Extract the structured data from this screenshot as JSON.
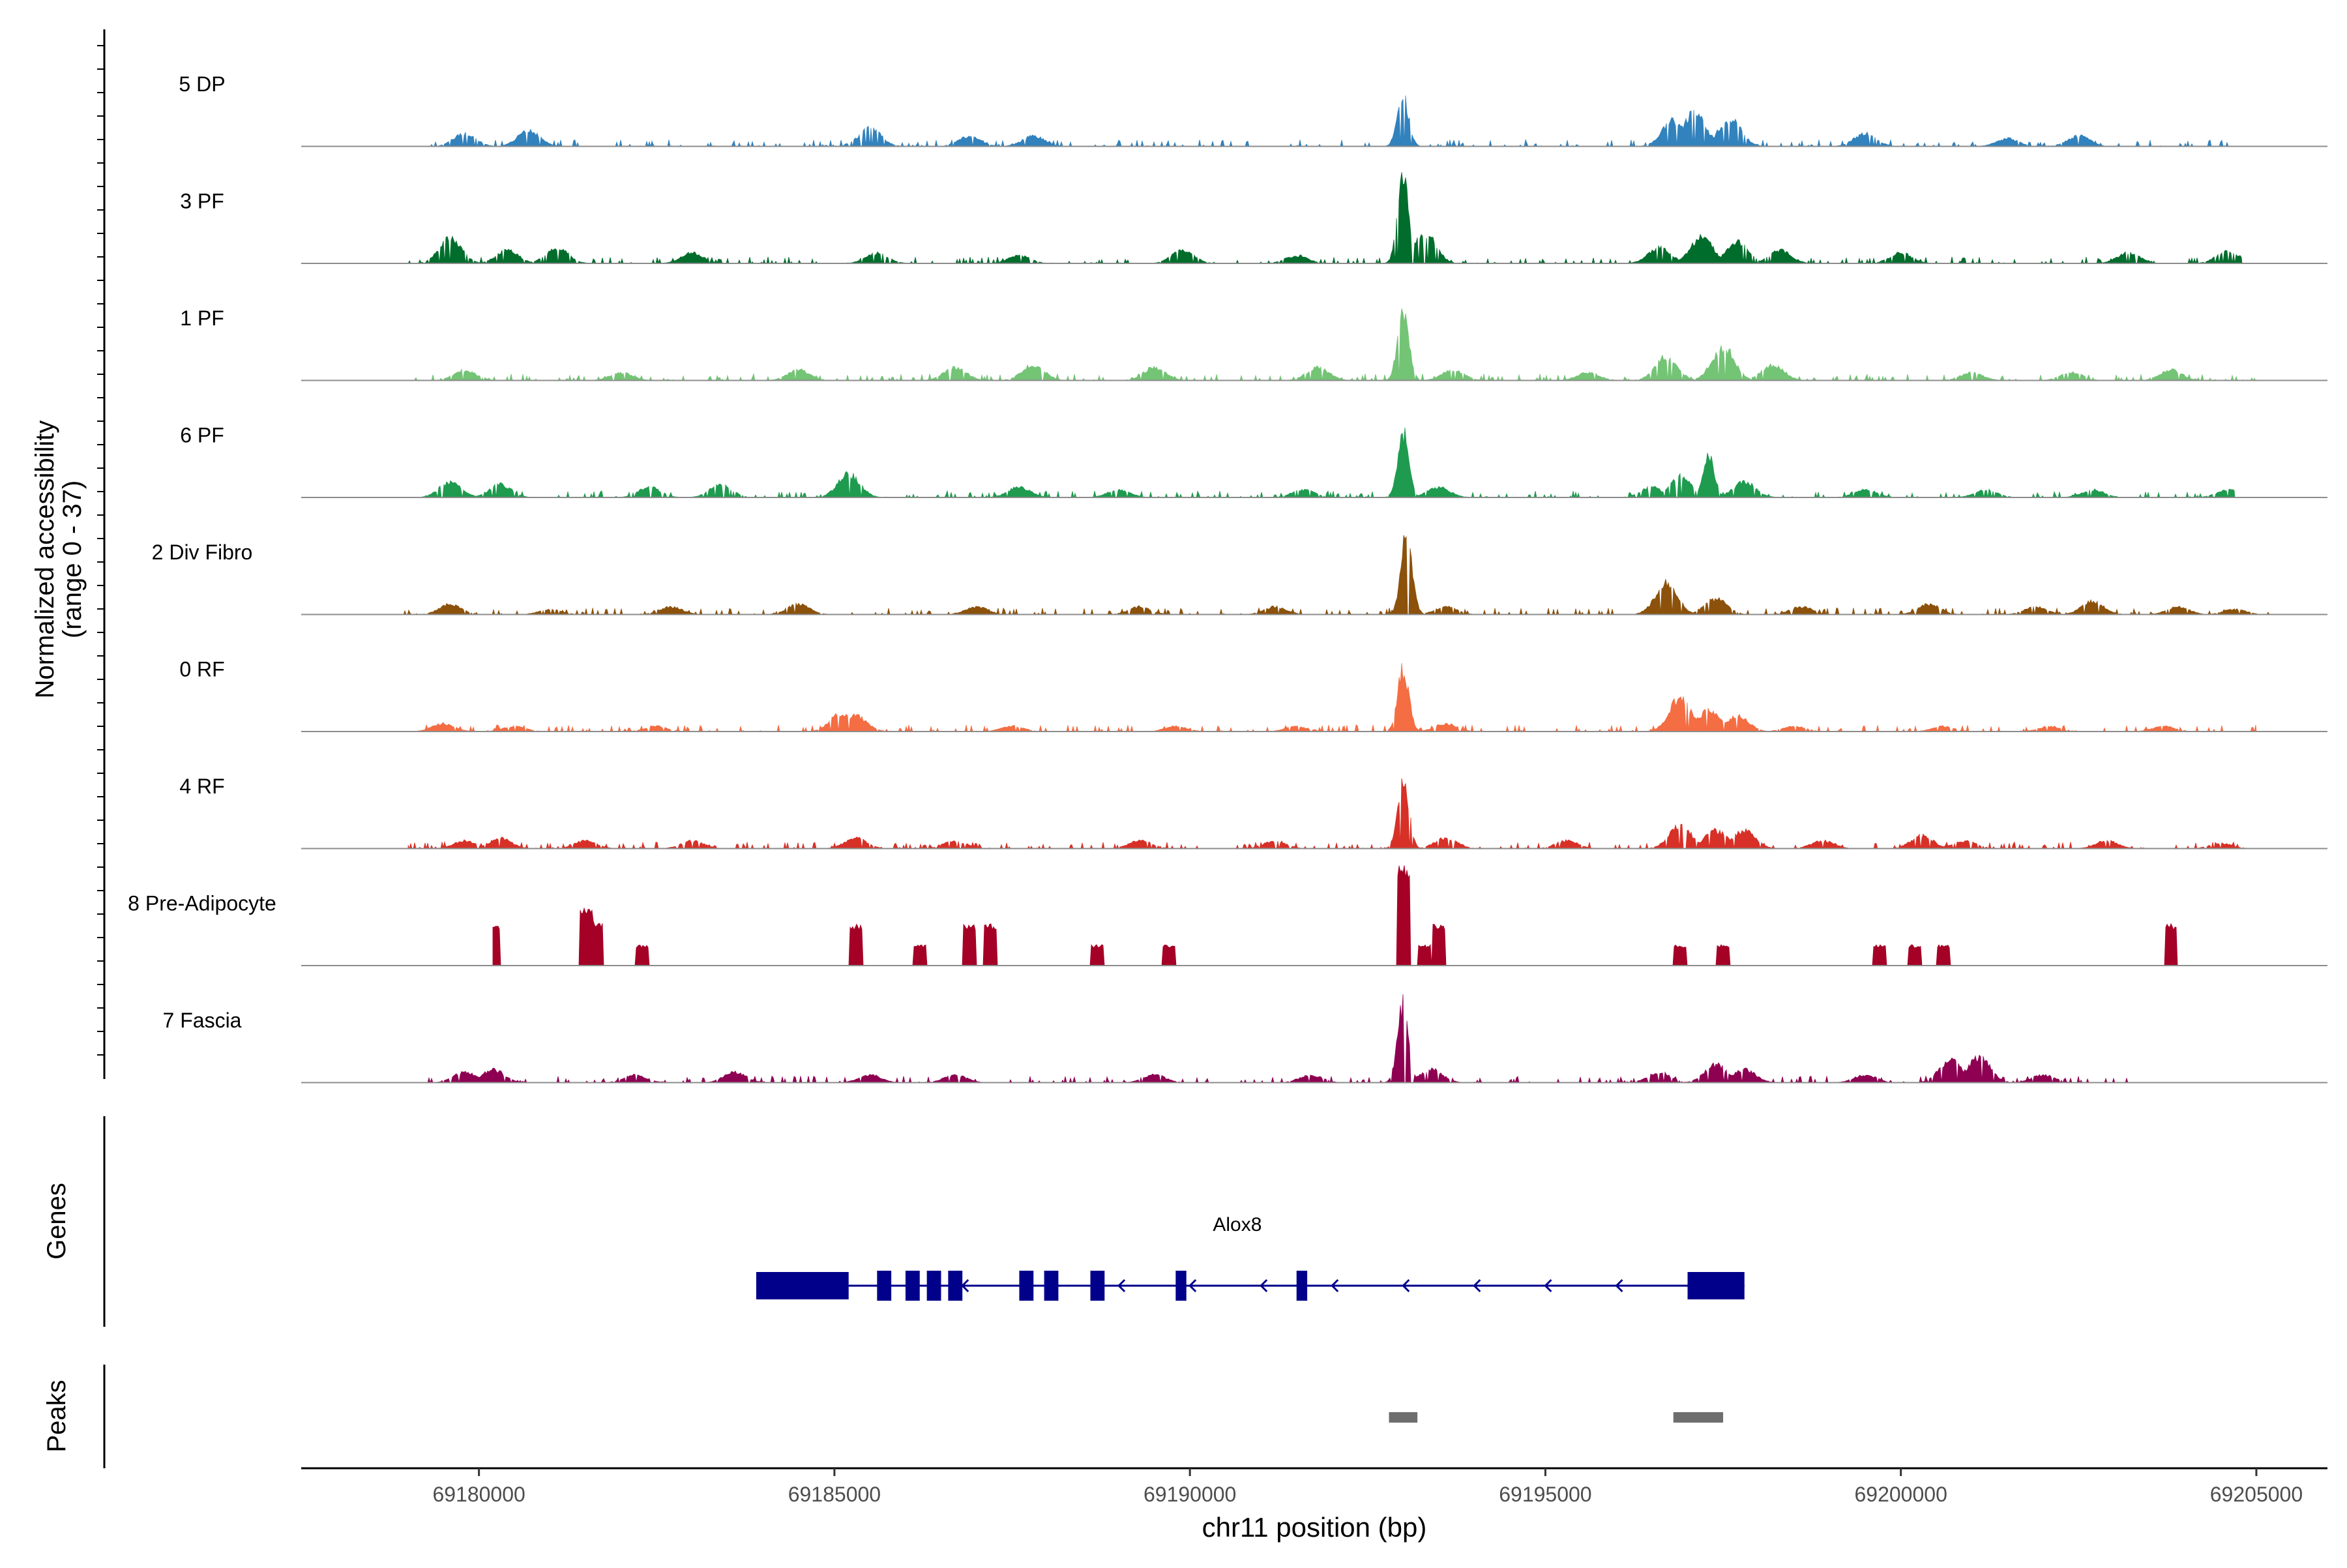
{
  "chart_data": {
    "type": "area",
    "title": "",
    "ylabel": "Normalized accessibility",
    "ylabel_range": "(range 0 - 37)",
    "ylim": [
      0,
      37
    ],
    "xlabel": "chr11 position (bp)",
    "xlim": [
      69177500,
      69206000
    ],
    "xticks": [
      69180000,
      69185000,
      69190000,
      69195000,
      69200000,
      69205000
    ],
    "xtick_labels": [
      "69180000",
      "69185000",
      "69190000",
      "69195000",
      "69200000",
      "69205000"
    ],
    "colors": {
      "5 DP": "#3182bd",
      "3 PF": "#006d2c",
      "1 PF": "#74c476",
      "6 PF": "#1f9b4f",
      "2 Div Fibro": "#8c510a",
      "0 RF": "#f46d43",
      "4 RF": "#d73027",
      "8 Pre-Adipocyte": "#a50026",
      "7 Fascia": "#8e0152",
      "gene": "#00008b",
      "peak": "#6e6e6e",
      "baseline": "#8c8c8c"
    },
    "series": [
      {
        "name": "5 DP",
        "x_start": 69179100,
        "x_end": 69204900,
        "peaks": [
          [
            69179800,
            5
          ],
          [
            69180700,
            6
          ],
          [
            69185500,
            7
          ],
          [
            69186900,
            4
          ],
          [
            69187800,
            4
          ],
          [
            69193000,
            19
          ],
          [
            69196800,
            10
          ],
          [
            69197100,
            13
          ],
          [
            69197600,
            11
          ],
          [
            69199500,
            5
          ],
          [
            69201500,
            3
          ],
          [
            69202500,
            4
          ]
        ]
      },
      {
        "name": "3 PF",
        "x_start": 69179000,
        "x_end": 69204800,
        "peaks": [
          [
            69179600,
            10
          ],
          [
            69180400,
            5
          ],
          [
            69181100,
            6
          ],
          [
            69183000,
            4
          ],
          [
            69185600,
            4
          ],
          [
            69187600,
            3
          ],
          [
            69189900,
            5
          ],
          [
            69191500,
            3
          ],
          [
            69193000,
            35
          ],
          [
            69193300,
            12
          ],
          [
            69196600,
            6
          ],
          [
            69197200,
            10
          ],
          [
            69197700,
            8
          ],
          [
            69198300,
            5
          ],
          [
            69200000,
            4
          ],
          [
            69203200,
            4
          ],
          [
            69204600,
            5
          ]
        ]
      },
      {
        "name": "1 PF",
        "x_start": 69179100,
        "x_end": 69205100,
        "peaks": [
          [
            69179800,
            4
          ],
          [
            69182000,
            3
          ],
          [
            69184500,
            4
          ],
          [
            69186700,
            5
          ],
          [
            69187800,
            6
          ],
          [
            69189500,
            5
          ],
          [
            69191800,
            5
          ],
          [
            69193000,
            28
          ],
          [
            69193700,
            4
          ],
          [
            69195600,
            3
          ],
          [
            69196700,
            9
          ],
          [
            69197500,
            13
          ],
          [
            69198200,
            6
          ],
          [
            69201000,
            3
          ],
          [
            69202400,
            3
          ],
          [
            69203800,
            4
          ]
        ]
      },
      {
        "name": "6 PF",
        "x_start": 69179200,
        "x_end": 69204700,
        "peaks": [
          [
            69179600,
            6
          ],
          [
            69180300,
            5
          ],
          [
            69182400,
            4
          ],
          [
            69183400,
            5
          ],
          [
            69185200,
            9
          ],
          [
            69187600,
            4
          ],
          [
            69189000,
            3
          ],
          [
            69191600,
            3
          ],
          [
            69193000,
            25
          ],
          [
            69193500,
            4
          ],
          [
            69196500,
            4
          ],
          [
            69196900,
            8
          ],
          [
            69197300,
            16
          ],
          [
            69197800,
            6
          ],
          [
            69199500,
            3
          ],
          [
            69201200,
            3
          ],
          [
            69202700,
            3
          ],
          [
            69204600,
            3
          ]
        ]
      },
      {
        "name": "2 Div Fibro",
        "x_start": 69178900,
        "x_end": 69205200,
        "peaks": [
          [
            69179600,
            4
          ],
          [
            69181000,
            2
          ],
          [
            69182700,
            3
          ],
          [
            69184500,
            4
          ],
          [
            69187000,
            3
          ],
          [
            69189300,
            3
          ],
          [
            69191200,
            3
          ],
          [
            69193050,
            32
          ],
          [
            69193600,
            3
          ],
          [
            69196700,
            12
          ],
          [
            69197400,
            6
          ],
          [
            69198600,
            3
          ],
          [
            69200400,
            4
          ],
          [
            69201900,
            3
          ],
          [
            69202700,
            5
          ],
          [
            69203900,
            3
          ],
          [
            69204700,
            2
          ]
        ]
      },
      {
        "name": "0 RF",
        "x_start": 69179000,
        "x_end": 69205000,
        "peaks": [
          [
            69179500,
            3
          ],
          [
            69180500,
            2
          ],
          [
            69182500,
            2
          ],
          [
            69185100,
            7
          ],
          [
            69185300,
            6
          ],
          [
            69187500,
            2
          ],
          [
            69189800,
            2
          ],
          [
            69191500,
            2
          ],
          [
            69193000,
            24
          ],
          [
            69193600,
            3
          ],
          [
            69196900,
            13
          ],
          [
            69197300,
            8
          ],
          [
            69197700,
            6
          ],
          [
            69198500,
            2
          ],
          [
            69200600,
            2
          ],
          [
            69202100,
            2
          ],
          [
            69203700,
            2
          ]
        ]
      },
      {
        "name": "4 RF",
        "x_start": 69179000,
        "x_end": 69204900,
        "peaks": [
          [
            69179800,
            3
          ],
          [
            69180300,
            4
          ],
          [
            69181500,
            3
          ],
          [
            69183000,
            3
          ],
          [
            69185300,
            4
          ],
          [
            69186700,
            3
          ],
          [
            69189300,
            3
          ],
          [
            69191200,
            3
          ],
          [
            69193000,
            27
          ],
          [
            69193600,
            4
          ],
          [
            69195300,
            3
          ],
          [
            69196900,
            9
          ],
          [
            69197400,
            7
          ],
          [
            69197800,
            7
          ],
          [
            69198900,
            3
          ],
          [
            69200300,
            5
          ],
          [
            69200900,
            3
          ],
          [
            69202900,
            3
          ],
          [
            69204500,
            2
          ]
        ]
      },
      {
        "name": "8 Pre-Adipocyte",
        "x_start": 69180200,
        "x_end": 69204100,
        "peaks": [
          [
            69180200,
            14
          ],
          [
            69181500,
            20
          ],
          [
            69181650,
            15
          ],
          [
            69182300,
            7
          ],
          [
            69185300,
            14
          ],
          [
            69186200,
            7
          ],
          [
            69186900,
            14
          ],
          [
            69187200,
            14
          ],
          [
            69188700,
            7
          ],
          [
            69189700,
            7
          ],
          [
            69193000,
            34
          ],
          [
            69193300,
            7
          ],
          [
            69193500,
            14
          ],
          [
            69196900,
            7
          ],
          [
            69197500,
            7
          ],
          [
            69199700,
            7
          ],
          [
            69200200,
            7
          ],
          [
            69200600,
            7
          ],
          [
            69203800,
            14
          ]
        ]
      },
      {
        "name": "7 Fascia",
        "x_start": 69179100,
        "x_end": 69203200,
        "peaks": [
          [
            69179800,
            4
          ],
          [
            69180200,
            5
          ],
          [
            69182200,
            3
          ],
          [
            69183600,
            4
          ],
          [
            69185500,
            3
          ],
          [
            69186700,
            3
          ],
          [
            69189500,
            3
          ],
          [
            69191700,
            3
          ],
          [
            69193000,
            30
          ],
          [
            69193400,
            5
          ],
          [
            69196600,
            4
          ],
          [
            69197400,
            7
          ],
          [
            69197800,
            5
          ],
          [
            69199500,
            3
          ],
          [
            69200700,
            9
          ],
          [
            69201100,
            10
          ],
          [
            69202000,
            3
          ]
        ]
      }
    ],
    "genes": [
      {
        "name": "Alox8",
        "strand": "-",
        "start": 69183900,
        "end": 69197800,
        "exons": [
          [
            69183900,
            69185200
          ],
          [
            69185600,
            69185800
          ],
          [
            69186000,
            69186200
          ],
          [
            69186300,
            69186500
          ],
          [
            69186600,
            69186800
          ],
          [
            69187600,
            69187800
          ],
          [
            69187950,
            69188150
          ],
          [
            69188600,
            69188800
          ],
          [
            69189800,
            69189950
          ],
          [
            69191500,
            69191650
          ],
          [
            69197000,
            69197800
          ]
        ],
        "arrows": [
          69186800,
          69189000,
          69190000,
          69191000,
          69192000,
          69193000,
          69194000,
          69195000,
          69196000,
          69197000
        ]
      }
    ],
    "peaks": [
      [
        69192800,
        69193200
      ],
      [
        69196800,
        69197500
      ]
    ],
    "panels": {
      "genes": "Genes",
      "peaks": "Peaks"
    }
  }
}
